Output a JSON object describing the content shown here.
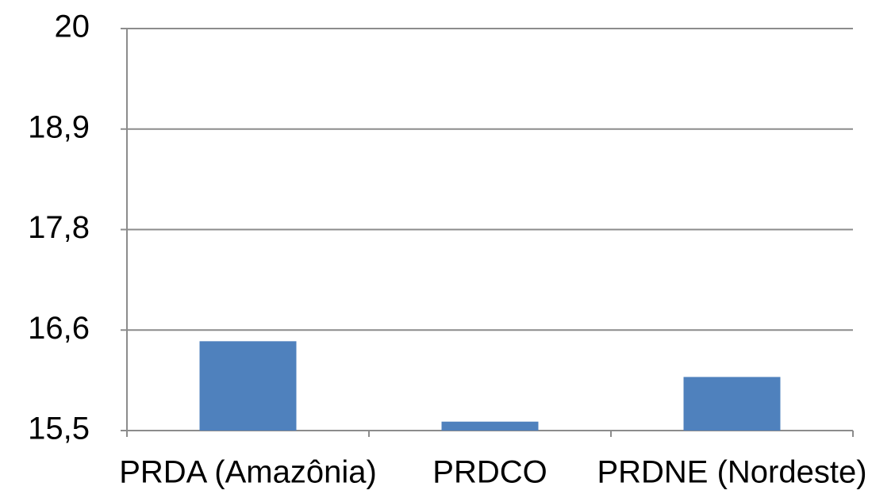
{
  "chart_data": {
    "type": "bar",
    "categories": [
      "PRDA (Amazônia)",
      "PRDCO",
      "PRDNE (Nordeste)"
    ],
    "values": [
      16.5,
      15.6,
      16.1
    ],
    "color": "#4f81bd",
    "ylim": [
      15.5,
      20
    ],
    "yticks": [
      {
        "value": 15.5,
        "label": "15,5"
      },
      {
        "value": 16.625,
        "label": "16,6"
      },
      {
        "value": 17.75,
        "label": "17,8"
      },
      {
        "value": 18.875,
        "label": "18,9"
      },
      {
        "value": 20,
        "label": "20"
      }
    ],
    "grid": true
  }
}
